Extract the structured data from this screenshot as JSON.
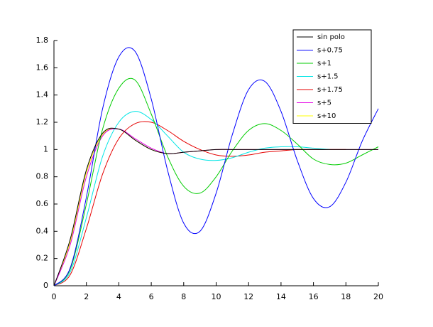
{
  "chart_data": {
    "type": "line",
    "x": [
      0,
      1,
      2,
      3,
      4,
      5,
      6,
      7,
      8,
      9,
      10,
      11,
      12,
      13,
      14,
      15,
      16,
      17,
      18,
      19,
      20
    ],
    "series": [
      {
        "name": "sin polo",
        "color": "#000000",
        "values": [
          0,
          0.34,
          0.85,
          1.12,
          1.15,
          1.07,
          1.0,
          0.97,
          0.98,
          0.99,
          1.0,
          1.0,
          1.0,
          1.0,
          1.0,
          1.0,
          1.0,
          1.0,
          1.0,
          1.0,
          1.0
        ]
      },
      {
        "name": "s+0.75",
        "color": "#0000ff",
        "values": [
          0,
          0.13,
          0.65,
          1.3,
          1.68,
          1.72,
          1.37,
          0.85,
          0.46,
          0.4,
          0.68,
          1.11,
          1.44,
          1.5,
          1.28,
          0.92,
          0.64,
          0.58,
          0.76,
          1.06,
          1.3
        ]
      },
      {
        "name": "s+1",
        "color": "#00cc00",
        "values": [
          0,
          0.12,
          0.6,
          1.15,
          1.45,
          1.51,
          1.26,
          0.95,
          0.73,
          0.68,
          0.8,
          0.99,
          1.14,
          1.19,
          1.14,
          1.04,
          0.93,
          0.89,
          0.9,
          0.96,
          1.02
        ]
      },
      {
        "name": "s+1.5",
        "color": "#00e5e5",
        "values": [
          0,
          0.1,
          0.5,
          0.95,
          1.2,
          1.28,
          1.22,
          1.1,
          0.98,
          0.93,
          0.92,
          0.94,
          0.98,
          1.01,
          1.02,
          1.02,
          1.01,
          1.0,
          null,
          null,
          null
        ]
      },
      {
        "name": "s+1.75",
        "color": "#e50000",
        "values": [
          0,
          0.08,
          0.42,
          0.82,
          1.08,
          1.19,
          1.2,
          1.14,
          1.06,
          1.0,
          0.96,
          0.95,
          0.96,
          0.98,
          0.99,
          1.0,
          1.0,
          1.0,
          1.0,
          null,
          null
        ]
      },
      {
        "name": "s+5",
        "color": "#e500e5",
        "values": [
          0,
          0.3,
          0.8,
          1.1,
          1.15,
          1.08,
          1.01,
          0.97,
          0.98,
          0.99,
          1.0,
          1.0,
          1.0,
          1.0,
          1.0,
          1.0,
          1.0,
          1.0,
          1.0,
          1.0,
          1.0
        ]
      },
      {
        "name": "s+10",
        "color": "#ffff00",
        "values": [
          0,
          0.32,
          0.83,
          1.11,
          1.15,
          1.07,
          1.0,
          0.97,
          0.98,
          0.99,
          1.0,
          1.0,
          1.0,
          1.0,
          1.0,
          1.0,
          1.0,
          1.0,
          1.0,
          1.0,
          1.0
        ]
      }
    ],
    "xlim": [
      0,
      20
    ],
    "xticks": [
      0,
      2,
      4,
      6,
      8,
      10,
      12,
      14,
      16,
      18,
      20
    ],
    "ylim": [
      0,
      1.8
    ],
    "yticks": [
      0,
      0.2,
      0.4,
      0.6,
      0.8,
      1,
      1.2,
      1.4,
      1.6,
      1.8
    ],
    "legend": "upper right"
  }
}
